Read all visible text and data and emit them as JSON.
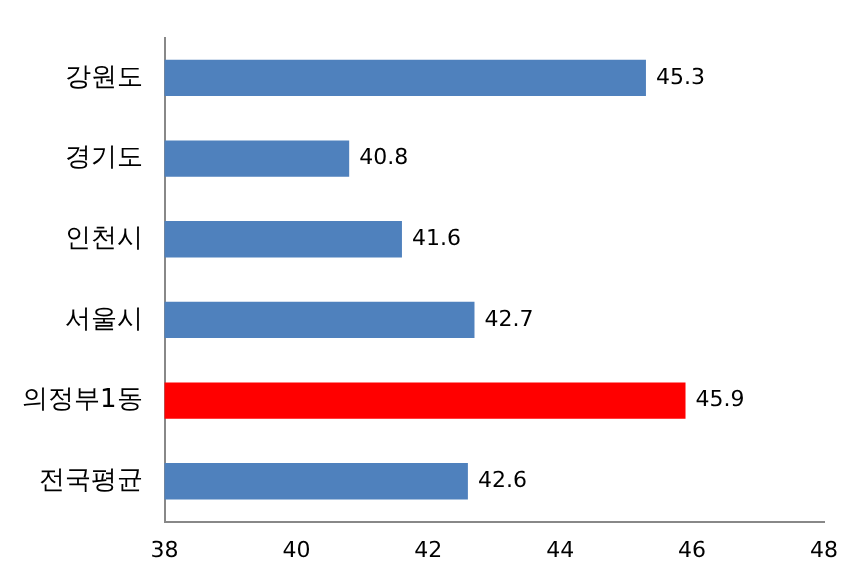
{
  "chart_data": {
    "type": "bar",
    "orientation": "horizontal",
    "categories": [
      "강원도",
      "경기도",
      "인천시",
      "서울시",
      "의정부1동",
      "전국평균"
    ],
    "values": [
      45.3,
      40.8,
      41.6,
      42.7,
      45.9,
      42.6
    ],
    "colors": [
      "#4f81bd",
      "#4f81bd",
      "#4f81bd",
      "#4f81bd",
      "#ff0000",
      "#4f81bd"
    ],
    "xlim": [
      38,
      48
    ],
    "xticks": [
      38,
      40,
      42,
      44,
      46,
      48
    ],
    "grid": false,
    "legend": false,
    "data_labels": true
  }
}
